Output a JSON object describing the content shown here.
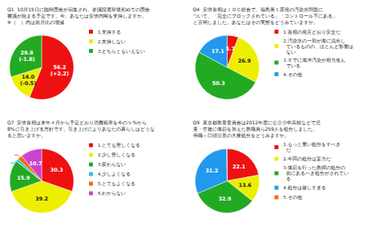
{
  "chart_data": [
    {
      "type": "pie",
      "title": "Q1  10月15日に臨時国会が召集され、参議院選挙後初めての国会\n審議が始まる予定です。今、あなたは安倍内閣を支持しますか。\n※（　）内は前月比の増減",
      "categories": [
        "1.支持する",
        "2.支持しない",
        "3.どちらともいえない"
      ],
      "values": [
        56.2,
        14.0,
        29.8
      ],
      "value_labels": [
        "56.2\n(+2.2)",
        "14.0\n(-0.5)",
        "29.8\n(-1.8)"
      ],
      "colors": [
        "#ee1111",
        "#eeee00",
        "#22aa22"
      ],
      "data_labels": true,
      "legend": "right"
    },
    {
      "type": "pie",
      "title": "Q4  安倍首相はＩＯＣ総会で、福島第１原発の汚染水問題に\nついて、「完全にブロックされている」「コントロール下にある」\nと言明しました。あなたはその実態をどうみていますか。",
      "categories": [
        "1.首相の発言どおり安全だ",
        "2.汚染水の一部が海に流出し\n  ているものの、ほとんど影響は\n  ない",
        "3.すでに海洋汚染が相当進ん\n  でいる",
        "4.その他"
      ],
      "values": [
        5.7,
        26.9,
        50.3,
        17.1
      ],
      "colors": [
        "#ee1111",
        "#eeee00",
        "#22aa22",
        "#2299ee"
      ],
      "data_labels": true,
      "legend": "right"
    },
    {
      "type": "pie",
      "title": "Q7  安倍首相は来年４月から予定どおり消費税率を今の５%から\n8%に引き上げる方針です。引き上げによりあなたの暮らしはどうな\nると思いますか。",
      "categories": [
        "1.とても苦しくなる",
        "2.少し苦しくなる",
        "3.変わらない",
        "4.少しよくなる",
        "5.とてもよくなる",
        "6.わからない"
      ],
      "values": [
        30.3,
        39.2,
        15.9,
        1.4,
        2.4,
        10.7
      ],
      "colors": [
        "#ee1111",
        "#eeee00",
        "#22aa22",
        "#22cccc",
        "#ff6600",
        "#cc44cc"
      ],
      "data_labels": true,
      "legend": "right"
    },
    {
      "type": "pie",
      "title": "Q9  東京都教育委員会は2012年度に公立小中高校などで児\n童・生徒に体罰を加えた教職員ら259人を処分しました。\n停職～口頭注意の大量処分をどうみますか。",
      "categories": [
        "1.もっと重い処分をすべき\n  だ",
        "2.今回の処分は妥当だ",
        "3.体罰を行った教師の処分の\n  前にあるべき処分がされてい\n  る",
        "4.処分は厳しすぎる",
        "5.その他"
      ],
      "values": [
        22.1,
        13.6,
        32.9,
        31.2,
        0.2
      ],
      "value_labels": [
        "22.1",
        "13.6",
        "32.9",
        "31.2",
        null
      ],
      "colors": [
        "#ee1111",
        "#eeee00",
        "#22aa22",
        "#2299ee",
        "#ff6600"
      ],
      "data_labels": true,
      "legend": "right"
    }
  ]
}
